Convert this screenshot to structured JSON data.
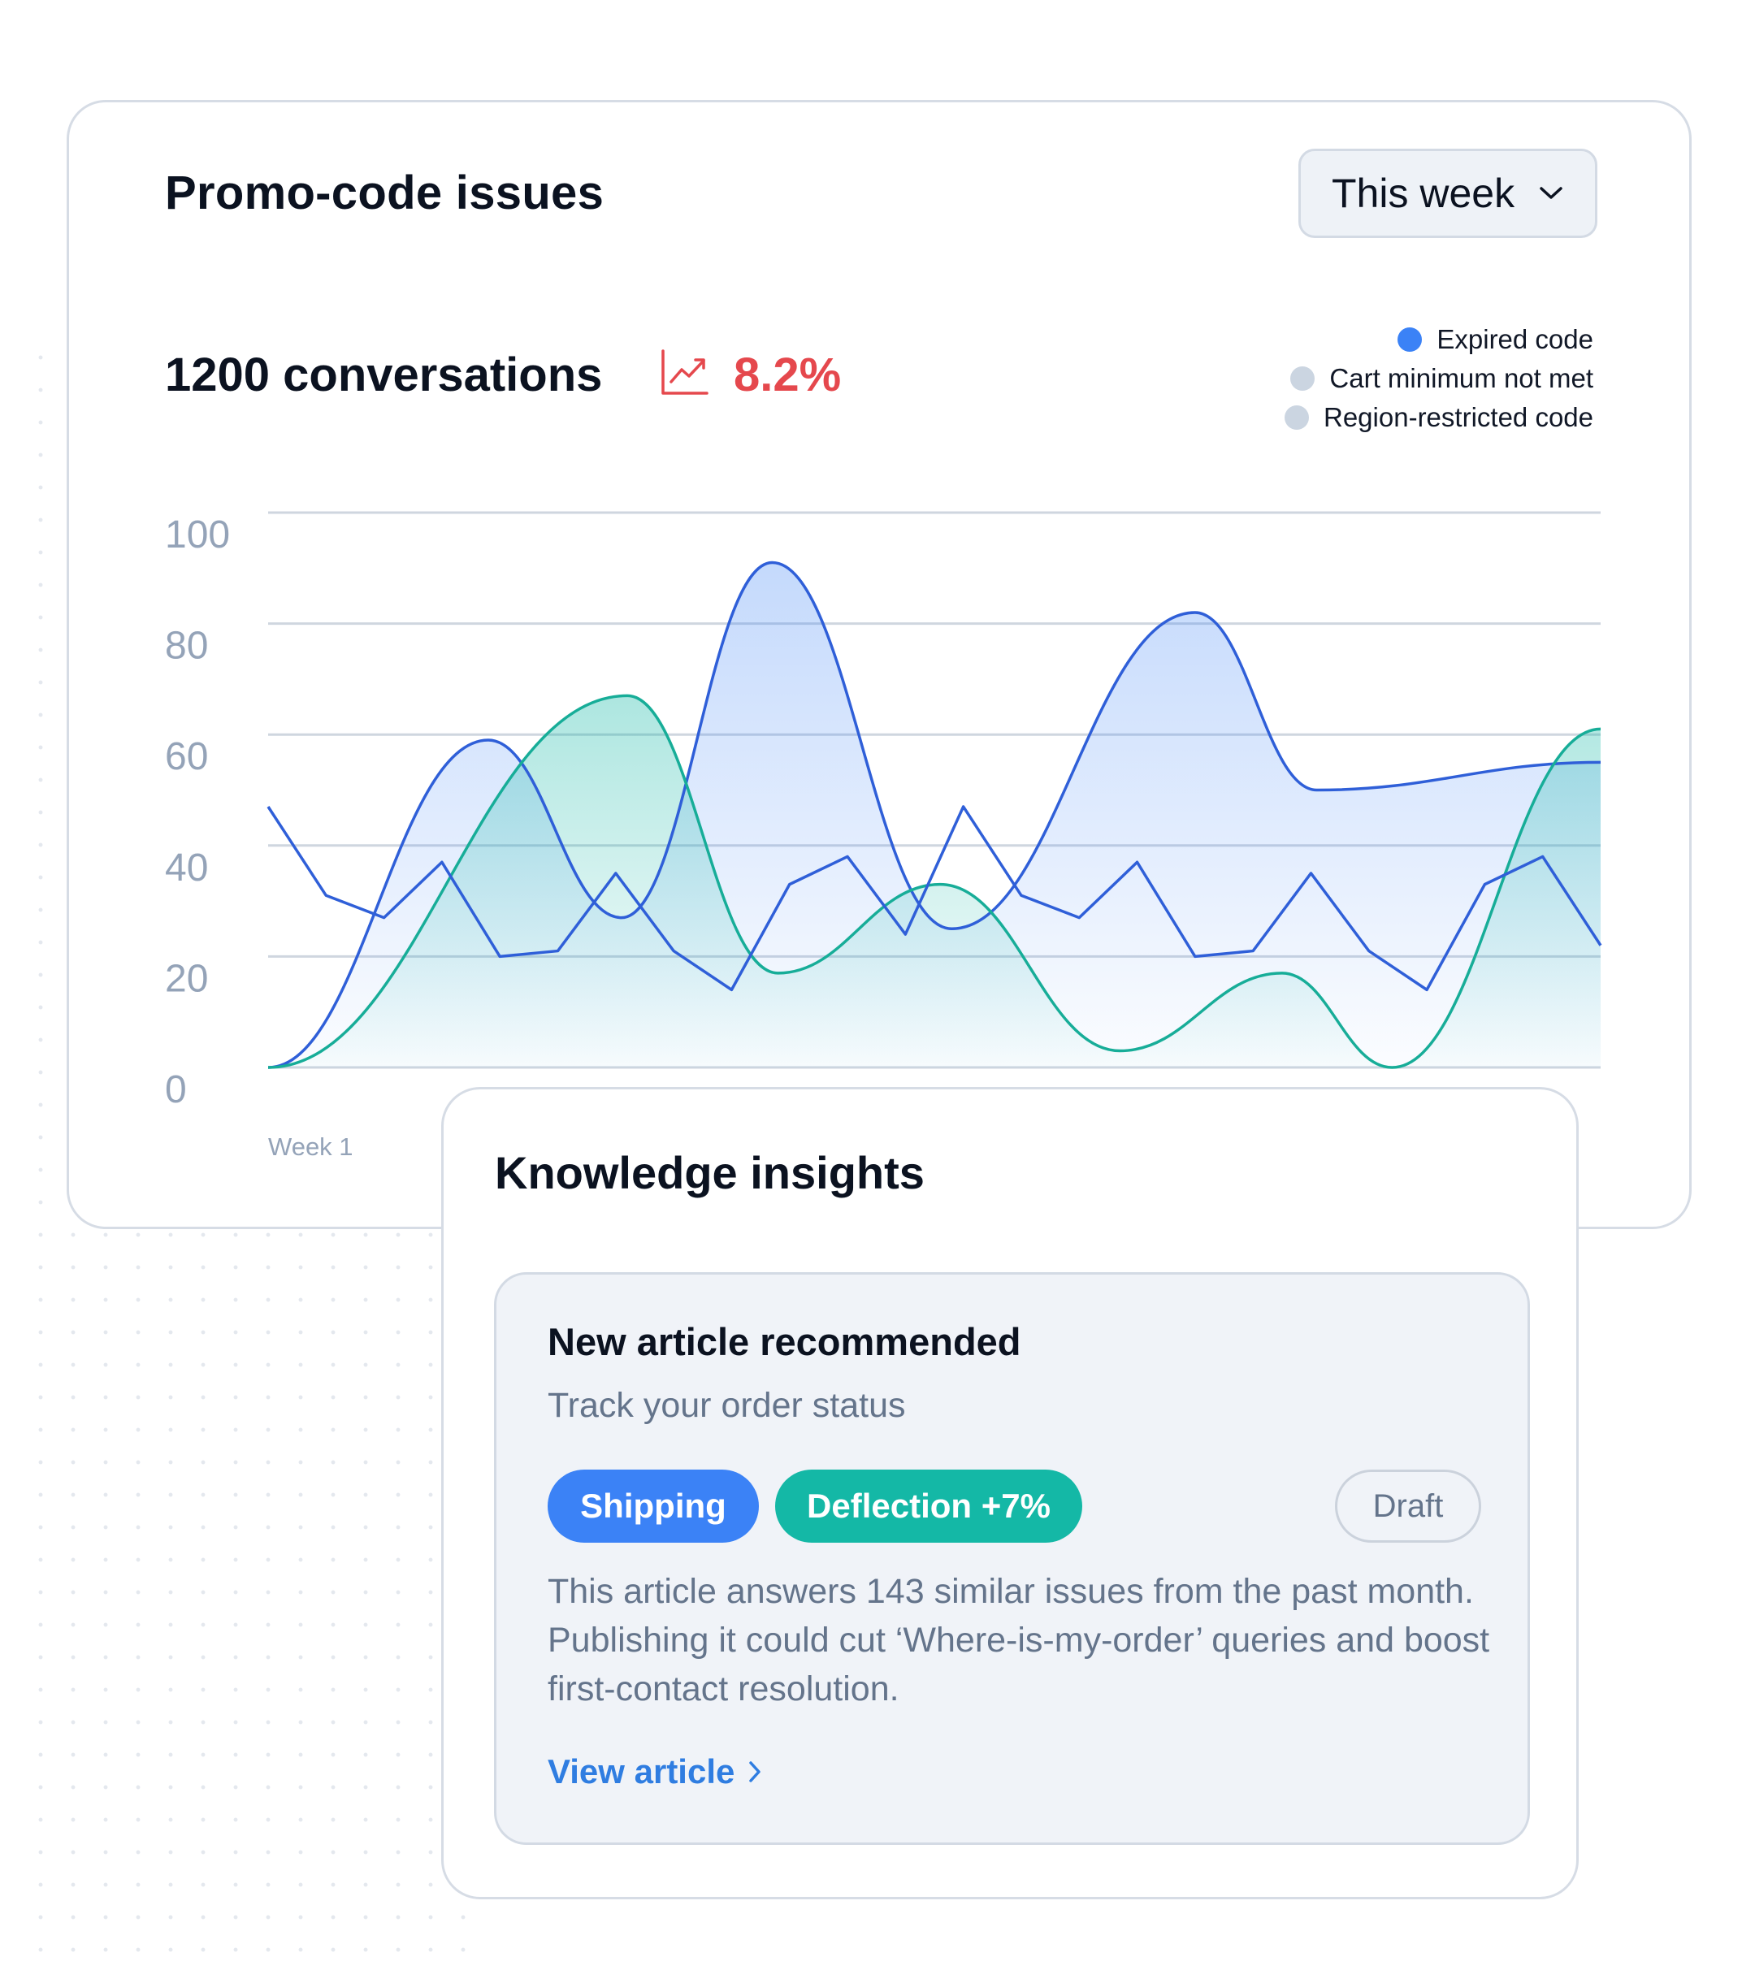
{
  "promo_card": {
    "title": "Promo-code issues",
    "range_selector": {
      "selected": "This week"
    },
    "conversation_count": "1200 conversations",
    "trend": {
      "value": "8.2%",
      "color": "#e5484d",
      "icon": "trending-up-icon"
    }
  },
  "chart_data": {
    "type": "area",
    "ylim": [
      0,
      100
    ],
    "yticks": [
      "100",
      "80",
      "60",
      "40",
      "20",
      "0"
    ],
    "x_start_label": "Week 1",
    "grid": true,
    "legend_position": "top-right",
    "legend": [
      {
        "label": "Expired code",
        "color": "#3b82f6"
      },
      {
        "label": "Cart minimum not met",
        "color": "#cbd5e1"
      },
      {
        "label": "Region-restricted code",
        "color": "#cbd5e1"
      }
    ],
    "series": [
      {
        "style": "smooth area",
        "color": "#2f5fd8",
        "x": [
          0,
          3.8,
          6.1,
          8.7,
          11.8,
          16,
          18.1,
          23
        ],
        "values": [
          0,
          59,
          27,
          91,
          25,
          82,
          50,
          55
        ]
      },
      {
        "style": "smooth area",
        "color": "#17ad98",
        "x": [
          0,
          6.2,
          8.8,
          11.6,
          14.7,
          17.5,
          19.4,
          23
        ],
        "values": [
          0,
          67,
          17,
          33,
          3,
          17,
          0,
          61
        ]
      },
      {
        "style": "jagged line",
        "color": "#2f5fd8",
        "x": [
          0,
          1,
          2,
          3,
          4,
          5,
          6,
          7,
          8,
          9,
          10,
          11,
          12,
          13,
          14,
          15,
          16,
          17,
          18,
          19,
          20,
          21,
          22,
          23
        ],
        "values": [
          47,
          31,
          27,
          37,
          20,
          21,
          35,
          21,
          14,
          33,
          38,
          24,
          47,
          31,
          27,
          37,
          20,
          21,
          35,
          21,
          14,
          33,
          38,
          22
        ]
      }
    ]
  },
  "insights_card": {
    "title": "Knowledge insights",
    "article": {
      "heading": "New article recommended",
      "subtitle": "Track your order status",
      "chips": {
        "shipping": "Shipping",
        "deflection": "Deflection +7%",
        "status": "Draft"
      },
      "body": "This article answers 143 similar issues from the past month. Publishing it could cut ‘Where-is-my-order’ queries and boost first-contact resolution.",
      "link": "View article"
    }
  }
}
